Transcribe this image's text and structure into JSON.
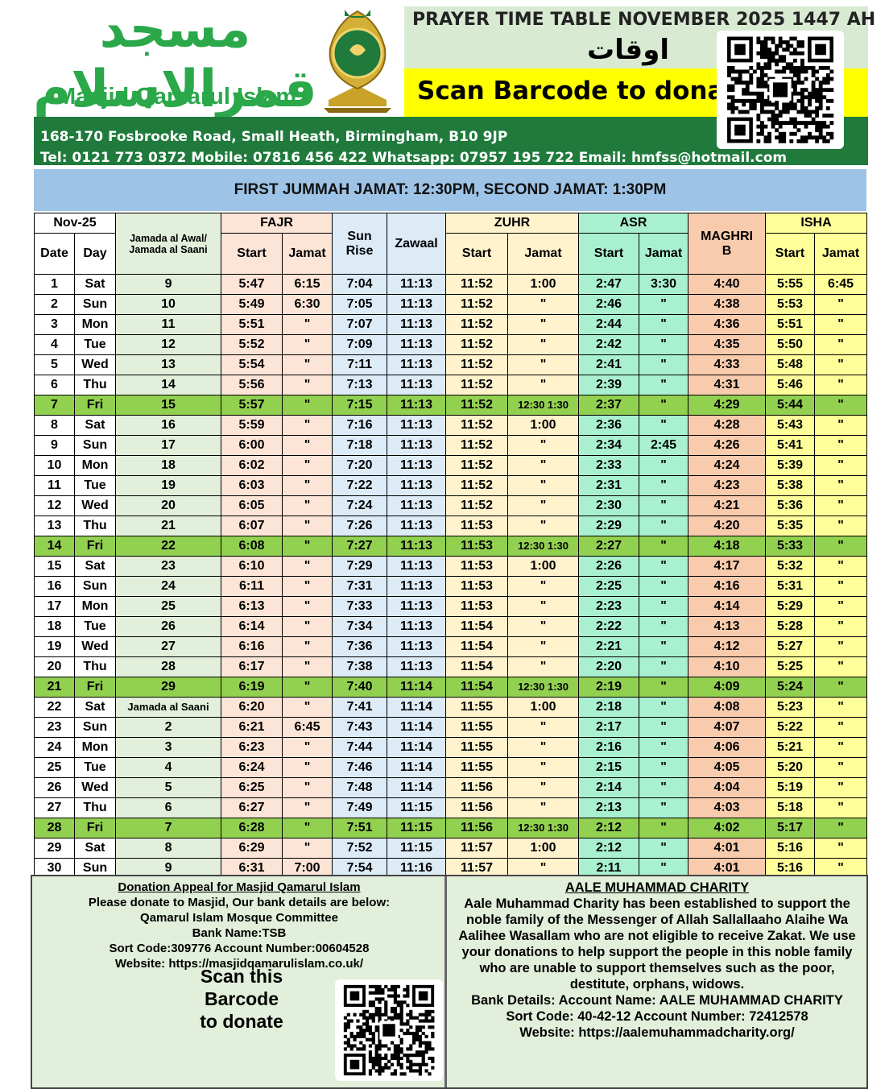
{
  "header": {
    "logo_arabic": "مسجد قمرالاسلام",
    "logo_name": "Masjid Qamarul Islam",
    "title": "PRAYER TIME TABLE NOVEMBER 2025 1447 AH",
    "title_arabic": "اوقات الصلوة",
    "scan_text": "Scan Barcode to donate",
    "address": "168-170 Fosbrooke Road, Small Heath, Birmingham, B10 9JP",
    "contact": "Tel: 0121 773 0372 Mobile: 07816 456 422 Whatsapp: 07957 195 722 Email: hmfss@hotmail.com"
  },
  "banner": "FIRST JUMMAH JAMAT: 12:30PM, SECOND JAMAT: 1:30PM",
  "table": {
    "header_top": [
      "Nov-25",
      "Jamada al Awal/ Jamada al Saani",
      "FAJR",
      "Sun Rise",
      "Zawaal",
      "ZUHR",
      "ASR",
      "MAGHRIB",
      "ISHA"
    ],
    "header_sub": [
      "Date",
      "Day",
      "Start",
      "Jamat",
      "Start",
      "Jamat",
      "Start",
      "Jamat",
      "Start",
      "Jamat"
    ],
    "rows": [
      {
        "cells": [
          "1",
          "Sat",
          "9",
          "5:47",
          "6:15",
          "7:04",
          "11:13",
          "11:52",
          "1:00",
          "2:47",
          "3:30",
          "4:40",
          "5:55",
          "6:45"
        ]
      },
      {
        "cells": [
          "2",
          "Sun",
          "10",
          "5:49",
          "6:30",
          "7:05",
          "11:13",
          "11:52",
          "\"",
          "2:46",
          "\"",
          "4:38",
          "5:53",
          "\""
        ]
      },
      {
        "cells": [
          "3",
          "Mon",
          "11",
          "5:51",
          "\"",
          "7:07",
          "11:13",
          "11:52",
          "\"",
          "2:44",
          "\"",
          "4:36",
          "5:51",
          "\""
        ]
      },
      {
        "cells": [
          "4",
          "Tue",
          "12",
          "5:52",
          "\"",
          "7:09",
          "11:13",
          "11:52",
          "\"",
          "2:42",
          "\"",
          "4:35",
          "5:50",
          "\""
        ]
      },
      {
        "cells": [
          "5",
          "Wed",
          "13",
          "5:54",
          "\"",
          "7:11",
          "11:13",
          "11:52",
          "\"",
          "2:41",
          "\"",
          "4:33",
          "5:48",
          "\""
        ]
      },
      {
        "cells": [
          "6",
          "Thu",
          "14",
          "5:56",
          "\"",
          "7:13",
          "11:13",
          "11:52",
          "\"",
          "2:39",
          "\"",
          "4:31",
          "5:46",
          "\""
        ]
      },
      {
        "cells": [
          "7",
          "Fri",
          "15",
          "5:57",
          "\"",
          "7:15",
          "11:13",
          "11:52",
          "12:30 1:30",
          "2:37",
          "\"",
          "4:29",
          "5:44",
          "\""
        ],
        "highlight": true
      },
      {
        "cells": [
          "8",
          "Sat",
          "16",
          "5:59",
          "\"",
          "7:16",
          "11:13",
          "11:52",
          "1:00",
          "2:36",
          "\"",
          "4:28",
          "5:43",
          "\""
        ]
      },
      {
        "cells": [
          "9",
          "Sun",
          "17",
          "6:00",
          "\"",
          "7:18",
          "11:13",
          "11:52",
          "\"",
          "2:34",
          "2:45",
          "4:26",
          "5:41",
          "\""
        ]
      },
      {
        "cells": [
          "10",
          "Mon",
          "18",
          "6:02",
          "\"",
          "7:20",
          "11:13",
          "11:52",
          "\"",
          "2:33",
          "\"",
          "4:24",
          "5:39",
          "\""
        ]
      },
      {
        "cells": [
          "11",
          "Tue",
          "19",
          "6:03",
          "\"",
          "7:22",
          "11:13",
          "11:52",
          "\"",
          "2:31",
          "\"",
          "4:23",
          "5:38",
          "\""
        ]
      },
      {
        "cells": [
          "12",
          "Wed",
          "20",
          "6:05",
          "\"",
          "7:24",
          "11:13",
          "11:52",
          "\"",
          "2:30",
          "\"",
          "4:21",
          "5:36",
          "\""
        ]
      },
      {
        "cells": [
          "13",
          "Thu",
          "21",
          "6:07",
          "\"",
          "7:26",
          "11:13",
          "11:53",
          "\"",
          "2:29",
          "\"",
          "4:20",
          "5:35",
          "\""
        ]
      },
      {
        "cells": [
          "14",
          "Fri",
          "22",
          "6:08",
          "\"",
          "7:27",
          "11:13",
          "11:53",
          "12:30 1:30",
          "2:27",
          "\"",
          "4:18",
          "5:33",
          "\""
        ],
        "highlight": true
      },
      {
        "cells": [
          "15",
          "Sat",
          "23",
          "6:10",
          "\"",
          "7:29",
          "11:13",
          "11:53",
          "1:00",
          "2:26",
          "\"",
          "4:17",
          "5:32",
          "\""
        ]
      },
      {
        "cells": [
          "16",
          "Sun",
          "24",
          "6:11",
          "\"",
          "7:31",
          "11:13",
          "11:53",
          "\"",
          "2:25",
          "\"",
          "4:16",
          "5:31",
          "\""
        ]
      },
      {
        "cells": [
          "17",
          "Mon",
          "25",
          "6:13",
          "\"",
          "7:33",
          "11:13",
          "11:53",
          "\"",
          "2:23",
          "\"",
          "4:14",
          "5:29",
          "\""
        ]
      },
      {
        "cells": [
          "18",
          "Tue",
          "26",
          "6:14",
          "\"",
          "7:34",
          "11:13",
          "11:54",
          "\"",
          "2:22",
          "\"",
          "4:13",
          "5:28",
          "\""
        ]
      },
      {
        "cells": [
          "19",
          "Wed",
          "27",
          "6:16",
          "\"",
          "7:36",
          "11:13",
          "11:54",
          "\"",
          "2:21",
          "\"",
          "4:12",
          "5:27",
          "\""
        ]
      },
      {
        "cells": [
          "20",
          "Thu",
          "28",
          "6:17",
          "\"",
          "7:38",
          "11:13",
          "11:54",
          "\"",
          "2:20",
          "\"",
          "4:10",
          "5:25",
          "\""
        ]
      },
      {
        "cells": [
          "21",
          "Fri",
          "29",
          "6:19",
          "\"",
          "7:40",
          "11:14",
          "11:54",
          "12:30 1:30",
          "2:19",
          "\"",
          "4:09",
          "5:24",
          "\""
        ],
        "highlight": true
      },
      {
        "cells": [
          "22",
          "Sat",
          "Jamada al Saani",
          "6:20",
          "\"",
          "7:41",
          "11:14",
          "11:55",
          "1:00",
          "2:18",
          "\"",
          "4:08",
          "5:23",
          "\""
        ]
      },
      {
        "cells": [
          "23",
          "Sun",
          "2",
          "6:21",
          "6:45",
          "7:43",
          "11:14",
          "11:55",
          "\"",
          "2:17",
          "\"",
          "4:07",
          "5:22",
          "\""
        ]
      },
      {
        "cells": [
          "24",
          "Mon",
          "3",
          "6:23",
          "\"",
          "7:44",
          "11:14",
          "11:55",
          "\"",
          "2:16",
          "\"",
          "4:06",
          "5:21",
          "\""
        ]
      },
      {
        "cells": [
          "25",
          "Tue",
          "4",
          "6:24",
          "\"",
          "7:46",
          "11:14",
          "11:55",
          "\"",
          "2:15",
          "\"",
          "4:05",
          "5:20",
          "\""
        ]
      },
      {
        "cells": [
          "26",
          "Wed",
          "5",
          "6:25",
          "\"",
          "7:48",
          "11:14",
          "11:56",
          "\"",
          "2:14",
          "\"",
          "4:04",
          "5:19",
          "\""
        ]
      },
      {
        "cells": [
          "27",
          "Thu",
          "6",
          "6:27",
          "\"",
          "7:49",
          "11:15",
          "11:56",
          "\"",
          "2:13",
          "\"",
          "4:03",
          "5:18",
          "\""
        ]
      },
      {
        "cells": [
          "28",
          "Fri",
          "7",
          "6:28",
          "\"",
          "7:51",
          "11:15",
          "11:56",
          "12:30 1:30",
          "2:12",
          "\"",
          "4:02",
          "5:17",
          "\""
        ],
        "highlight": true
      },
      {
        "cells": [
          "29",
          "Sat",
          "8",
          "6:29",
          "\"",
          "7:52",
          "11:15",
          "11:57",
          "1:00",
          "2:12",
          "\"",
          "4:01",
          "5:16",
          "\""
        ]
      },
      {
        "cells": [
          "30",
          "Sun",
          "9",
          "6:31",
          "7:00",
          "7:54",
          "11:16",
          "11:57",
          "\"",
          "2:11",
          "\"",
          "4:01",
          "5:16",
          "\""
        ]
      }
    ]
  },
  "footer": {
    "donation": {
      "heading": "Donation Appeal for Masjid Qamarul Islam",
      "lines": [
        "Please donate to Masjid, Our bank details are below:",
        "Qamarul Islam Mosque Committee",
        "Bank Name:TSB",
        "Sort Code:309776 Account Number:00604528",
        "Website: https://masjidqamarulislam.co.uk/"
      ],
      "scan_text": [
        "Scan this",
        "Barcode",
        "to donate"
      ]
    },
    "charity": {
      "heading": "AALE MUHAMMAD CHARITY",
      "paragraph": "Aale Muhammad Charity has been established to support the noble family of the Messenger of Allah Sallallaaho Alaihe Wa Aalihee Wasallam who are not eligible to receive Zakat. We use your donations to help support the people in this noble family who are unable to support themselves such as the poor, destitute, orphans, widows.",
      "lines": [
        "Bank Details: Account Name: AALE MUHAMMAD CHARITY",
        "Sort Code: 40-42-12 Account Number: 72412578",
        "Website: https://aalemuhammadcharity.org/"
      ]
    }
  }
}
